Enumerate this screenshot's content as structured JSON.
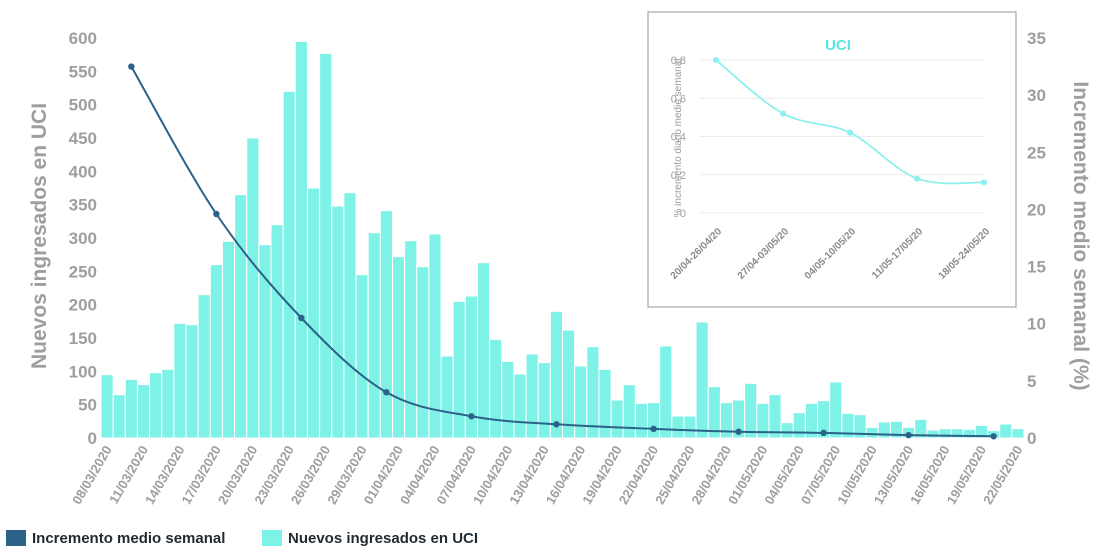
{
  "colors": {
    "bars": "#7ff2e8",
    "bar_stroke": "#ffffff",
    "line": "#2b6288",
    "axis_text": "#9e9e9e",
    "inset_line": "#8cf0ec",
    "inset_title": "#5ce3e1"
  },
  "chart_data": [
    {
      "type": "bar+line",
      "x_tick_labels": [
        "08/03/2020",
        "11/03/2020",
        "14/03/2020",
        "17/03/2020",
        "20/03/2020",
        "23/03/2020",
        "26/03/2020",
        "29/03/2020",
        "01/04/2020",
        "04/04/2020",
        "07/04/2020",
        "10/04/2020",
        "13/04/2020",
        "16/04/2020",
        "19/04/2020",
        "22/04/2020",
        "25/04/2020",
        "28/04/2020",
        "01/05/2020",
        "04/05/2020",
        "07/05/2020",
        "10/05/2020",
        "13/05/2020",
        "16/05/2020",
        "19/05/2020",
        "22/05/2020"
      ],
      "bar_series": {
        "name": "Nuevos ingresados en UCI",
        "axis": "left",
        "values": [
          95,
          65,
          88,
          80,
          98,
          103,
          172,
          170,
          215,
          260,
          295,
          365,
          450,
          290,
          320,
          520,
          595,
          375,
          577,
          348,
          368,
          245,
          308,
          341,
          272,
          296,
          257,
          306,
          123,
          205,
          213,
          263,
          148,
          115,
          96,
          126,
          113,
          190,
          162,
          108,
          137,
          103,
          57,
          80,
          52,
          53,
          138,
          33,
          33,
          174,
          77,
          53,
          57,
          82,
          52,
          65,
          23,
          38,
          52,
          56,
          84,
          37,
          35,
          16,
          24,
          25,
          16,
          28,
          12,
          14,
          14,
          13,
          19,
          11,
          21,
          14
        ]
      },
      "line_series": {
        "name": "Incremento medio semanal",
        "axis": "right",
        "x_index": [
          2,
          9,
          16,
          23,
          30,
          37,
          45,
          52,
          59,
          66,
          73
        ],
        "values": [
          32.5,
          19.6,
          10.5,
          4.0,
          1.9,
          1.2,
          0.8,
          0.55,
          0.45,
          0.25,
          0.15
        ]
      },
      "y_left": {
        "label": "Nuevos ingresados en UCI",
        "ticks": [
          0,
          50,
          100,
          150,
          200,
          250,
          300,
          350,
          400,
          450,
          500,
          550,
          600
        ],
        "ylim": [
          0,
          600
        ]
      },
      "y_right": {
        "label": "Incremento medio semanal (%)",
        "ticks": [
          0,
          5,
          10,
          15,
          20,
          25,
          30,
          35
        ],
        "ylim": [
          0,
          35
        ]
      },
      "legend": [
        "Incremento medio semanal",
        "Nuevos ingresados en UCI"
      ],
      "legend_position": "bottom-left",
      "grid": false
    },
    {
      "type": "line",
      "title": "UCI",
      "ylabel": "% incremento diario medio semanal",
      "categories": [
        "20/04-26/04/20",
        "27/04-03/05/20",
        "04/05-10/05/20",
        "11/05-17/05/20",
        "18/05-24/05/20"
      ],
      "values": [
        0.8,
        0.52,
        0.42,
        0.18,
        0.16
      ],
      "y_tick_labels": [
        "0",
        "0,2",
        "0,4",
        "0,6",
        "0,8"
      ],
      "ylim": [
        0,
        0.8
      ],
      "grid": true,
      "position": "top-right inset"
    }
  ]
}
